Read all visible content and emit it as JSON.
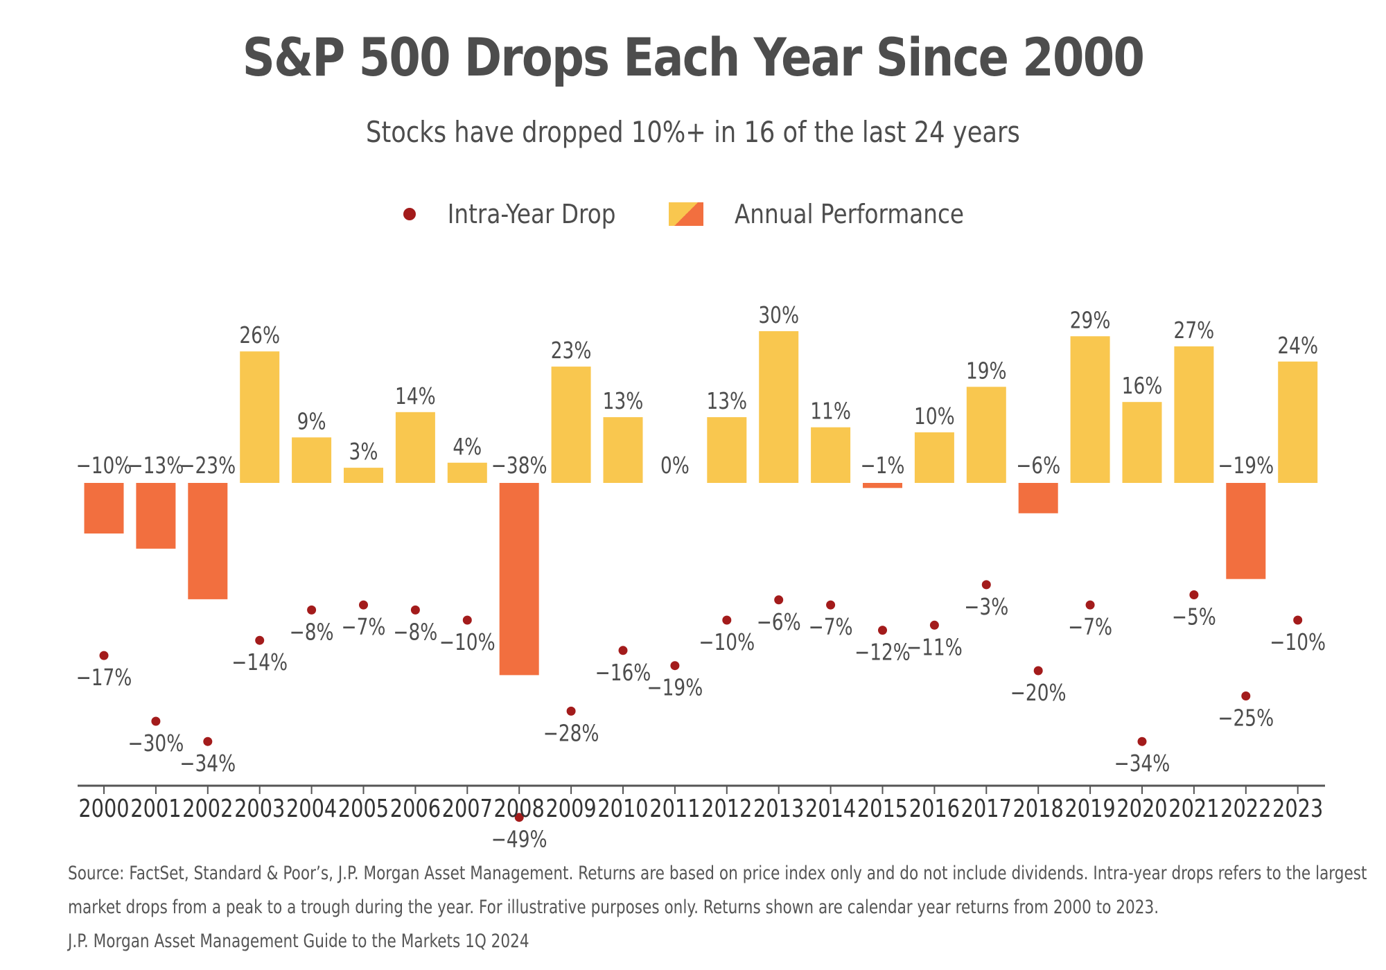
{
  "chart_data": {
    "type": "bar",
    "title": "S&P 500 Drops Each Year Since 2000",
    "subtitle": "Stocks have dropped 10%+ in 16 of the last 24 years",
    "legend": [
      {
        "name": "Intra-Year Drop",
        "marker": "dot",
        "color": "#a31b1b"
      },
      {
        "name": "Annual Performance",
        "marker": "bar",
        "colors": [
          "#f9c74f",
          "#f26f3f"
        ]
      }
    ],
    "legend_placement": "top-center",
    "grid": false,
    "categories": [
      "2000",
      "2001",
      "2002",
      "2003",
      "2004",
      "2005",
      "2006",
      "2007",
      "2008",
      "2009",
      "2010",
      "2011",
      "2012",
      "2013",
      "2014",
      "2015",
      "2016",
      "2017",
      "2018",
      "2019",
      "2020",
      "2021",
      "2022",
      "2023"
    ],
    "series": [
      {
        "name": "Annual Performance",
        "type": "bar",
        "values": [
          -10,
          -13,
          -23,
          26,
          9,
          3,
          14,
          4,
          -38,
          23,
          13,
          0,
          13,
          30,
          11,
          -1,
          10,
          19,
          -6,
          29,
          16,
          27,
          -19,
          24
        ],
        "labels": [
          "−10%",
          "−13%",
          "−23%",
          "26%",
          "9%",
          "3%",
          "14%",
          "4%",
          "−38%",
          "23%",
          "13%",
          "0%",
          "13%",
          "30%",
          "11%",
          "−1%",
          "10%",
          "19%",
          "−6%",
          "29%",
          "16%",
          "27%",
          "−19%",
          "24%"
        ]
      },
      {
        "name": "Intra-Year Drop",
        "type": "scatter",
        "values": [
          -17,
          -30,
          -34,
          -14,
          -8,
          -7,
          -8,
          -10,
          -49,
          -28,
          -16,
          -19,
          -10,
          -6,
          -7,
          -12,
          -11,
          -3,
          -20,
          -7,
          -34,
          -5,
          -25,
          -10
        ],
        "labels": [
          "−17%",
          "−30%",
          "−34%",
          "−14%",
          "−8%",
          "−7%",
          "−8%",
          "−10%",
          "−49%",
          "−28%",
          "−16%",
          "−19%",
          "−10%",
          "−6%",
          "−7%",
          "−12%",
          "−11%",
          "−3%",
          "−20%",
          "−7%",
          "−34%",
          "−5%",
          "−25%",
          "−10%"
        ]
      }
    ],
    "colors": {
      "positive": "#f9c74f",
      "negative": "#f26f3f",
      "dot": "#a31b1b",
      "axis": "#555555",
      "label": "#4d4d4d"
    },
    "ylim": [
      -60,
      30
    ]
  },
  "footnote": {
    "line1": "Source: FactSet, Standard & Poor’s, J.P. Morgan Asset Management. Returns are based on price index only and do not include dividends. Intra-year drops refers to the largest",
    "line2": "market drops from a peak to a trough during the year. For illustrative purposes only. Returns shown are calendar year returns from 2000 to 2023.",
    "line3": "J.P. Morgan Asset Management Guide to the Markets 1Q 2024"
  }
}
